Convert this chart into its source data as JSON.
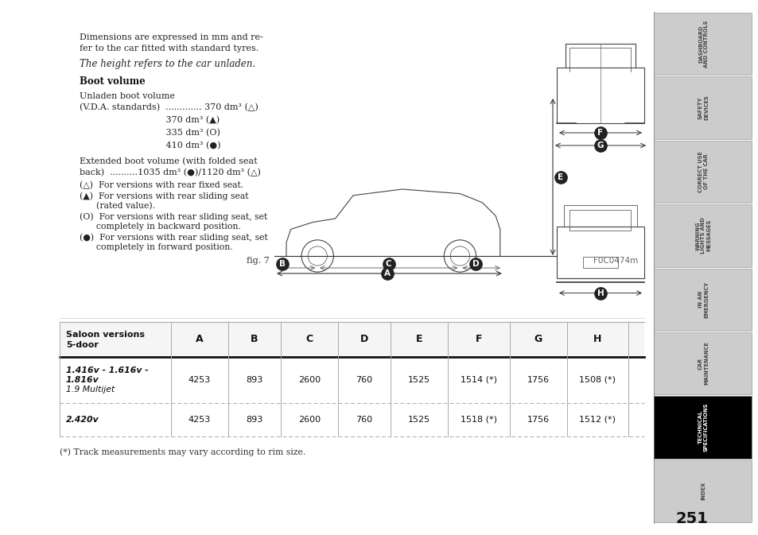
{
  "page_bg": "#ffffff",
  "page_num": "251",
  "sidebar_tabs": [
    {
      "label": "DASHBOARD\nAND CONTROLS",
      "active": false
    },
    {
      "label": "SAFETY\nDEVICES",
      "active": false
    },
    {
      "label": "CORRECT USE\nOF THE CAR",
      "active": false
    },
    {
      "label": "WARNING\nLIGHTS AND\nMESSAGES",
      "active": false
    },
    {
      "label": "IN AN\nEMERGENCY",
      "active": false
    },
    {
      "label": "CAR\nMAINTENANCE",
      "active": false
    },
    {
      "label": "TECHNICAL\nSPECIFICATIONS",
      "active": true
    },
    {
      "label": "INDEX",
      "active": false
    }
  ],
  "intro_line1": "Dimensions are expressed in mm and re-",
  "intro_line2": "fer to the car fitted with standard tyres.",
  "intro_line3": "The height refers to the car unladen.",
  "boot_volume_title": "Boot volume",
  "unladen_line1": "Unladen boot volume",
  "unladen_line2": "(V.D.A. standards)  ............. 370 dm³ (△)",
  "unladen_line3": "                               370 dm³ (▲)",
  "unladen_line4": "                               335 dm³ (O)",
  "unladen_line5": "                               410 dm³ (●)",
  "extended_line1": "Extended boot volume (with folded seat",
  "extended_line2": "back)  ..........1035 dm³ (●)/1120 dm³ (△)",
  "legend1": "(△)  For versions with rear fixed seat.",
  "legend2a": "(▲)  For versions with rear sliding seat",
  "legend2b": "      (rated value).",
  "legend3a": "(O)  For versions with rear sliding seat, set",
  "legend3b": "      completely in backward position.",
  "legend4a": "(●)  For versions with rear sliding seat, set",
  "legend4b": "      completely in forward position.",
  "fig_label": "fig. 7",
  "fig_code": "F0C0474m",
  "table_header": [
    "Saloon versions\n5-door",
    "A",
    "B",
    "C",
    "D",
    "E",
    "F",
    "G",
    "H"
  ],
  "table_row1_label": "1.416v - 1.616v -\n1.816v\n1.9 Multijet",
  "table_row1_vals": [
    "4253",
    "893",
    "2600",
    "760",
    "1525",
    "1514 (*)",
    "1756",
    "1508 (*)"
  ],
  "table_row2_label": "2.420v",
  "table_row2_vals": [
    "4253",
    "893",
    "2600",
    "760",
    "1525",
    "1518 (*)",
    "1756",
    "1512 (*)"
  ],
  "footnote": "(*) Track measurements may vary according to rim size.",
  "active_tab_bg": "#000000",
  "active_tab_fg": "#ffffff",
  "inactive_tab_bg": "#cccccc",
  "inactive_tab_fg": "#444444"
}
